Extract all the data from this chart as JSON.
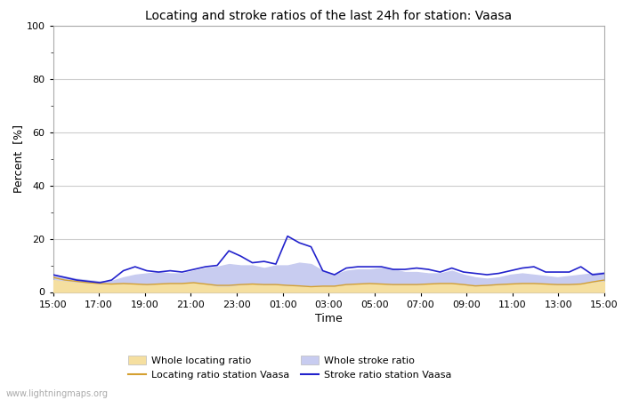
{
  "title": "Locating and stroke ratios of the last 24h for station: Vaasa",
  "xlabel": "Time",
  "ylabel": "Percent  [%]",
  "xlim": [
    0,
    24
  ],
  "ylim": [
    0,
    100
  ],
  "yticks": [
    0,
    20,
    40,
    60,
    80,
    100
  ],
  "xtick_labels": [
    "15:00",
    "17:00",
    "19:00",
    "21:00",
    "23:00",
    "01:00",
    "03:00",
    "05:00",
    "07:00",
    "09:00",
    "11:00",
    "13:00",
    "15:00"
  ],
  "watermark": "www.lightningmaps.org",
  "whole_locating_fill_color": "#f5dfa0",
  "whole_stroke_fill_color": "#c8ccf0",
  "locating_line_color": "#d4a030",
  "stroke_line_color": "#2222cc",
  "background_color": "#ffffff",
  "plot_bg_color": "#ffffff",
  "grid_color": "#cccccc",
  "whole_locating": [
    4.5,
    4.0,
    3.5,
    3.2,
    3.0,
    2.8,
    3.0,
    2.8,
    2.5,
    2.8,
    3.0,
    3.0,
    3.2,
    2.8,
    2.0,
    2.0,
    2.5,
    2.8,
    2.5,
    2.5,
    2.2,
    2.0,
    1.8,
    2.0,
    2.0,
    2.5,
    2.8,
    3.0,
    2.8,
    2.5,
    2.5,
    2.5,
    2.8,
    3.0,
    3.0,
    2.5,
    2.0,
    2.2,
    2.5,
    2.8,
    3.0,
    3.0,
    2.8,
    2.5,
    2.5,
    2.8,
    3.5,
    4.0
  ],
  "whole_stroke": [
    6.5,
    5.8,
    5.0,
    4.5,
    4.0,
    4.2,
    5.5,
    6.5,
    7.0,
    7.5,
    7.0,
    7.0,
    8.0,
    9.0,
    9.5,
    10.5,
    10.0,
    10.0,
    9.0,
    10.0,
    10.0,
    11.0,
    10.5,
    8.0,
    6.5,
    8.0,
    8.5,
    8.5,
    9.0,
    8.5,
    7.5,
    7.5,
    7.0,
    7.0,
    8.0,
    6.5,
    5.5,
    5.0,
    5.5,
    6.5,
    7.0,
    6.5,
    6.0,
    5.5,
    6.0,
    6.5,
    7.0,
    7.5
  ],
  "locating_ratio": [
    5.5,
    4.5,
    4.0,
    3.5,
    3.2,
    3.0,
    3.2,
    3.0,
    2.8,
    3.0,
    3.2,
    3.2,
    3.5,
    3.0,
    2.5,
    2.5,
    2.8,
    3.0,
    2.8,
    2.8,
    2.5,
    2.3,
    2.0,
    2.2,
    2.2,
    2.8,
    3.0,
    3.2,
    3.0,
    2.8,
    2.8,
    2.8,
    3.0,
    3.2,
    3.2,
    2.8,
    2.3,
    2.5,
    2.8,
    3.0,
    3.2,
    3.2,
    3.0,
    2.8,
    2.8,
    3.0,
    3.8,
    4.5
  ],
  "stroke_ratio": [
    6.5,
    5.5,
    4.5,
    4.0,
    3.5,
    4.5,
    8.0,
    9.5,
    8.0,
    7.5,
    8.0,
    7.5,
    8.5,
    9.5,
    10.0,
    15.5,
    13.5,
    11.0,
    11.5,
    10.5,
    21.0,
    18.5,
    17.0,
    8.0,
    6.5,
    9.0,
    9.5,
    9.5,
    9.5,
    8.5,
    8.5,
    9.0,
    8.5,
    7.5,
    9.0,
    7.5,
    7.0,
    6.5,
    7.0,
    8.0,
    9.0,
    9.5,
    7.5,
    7.5,
    7.5,
    9.5,
    6.5,
    7.0
  ]
}
